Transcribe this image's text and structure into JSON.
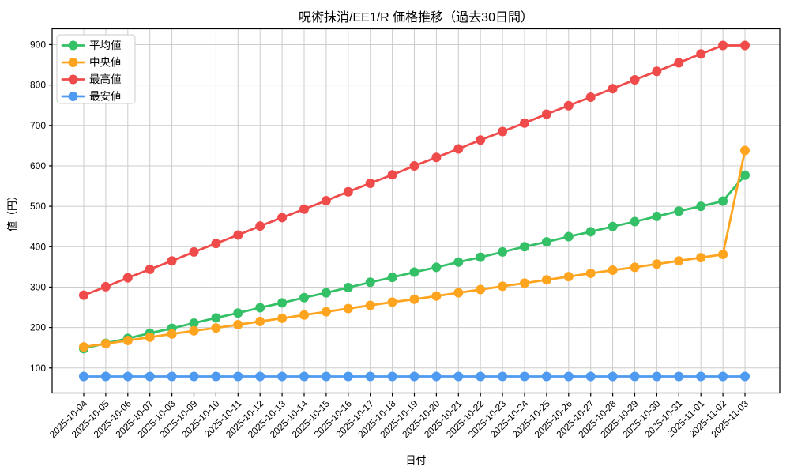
{
  "figure": {
    "background": "#ffffff",
    "grid_color": "#cccccc",
    "axis_color": "#000000"
  },
  "chart_data": {
    "type": "line",
    "title": "呪術抹消/EE1/R 価格推移（過去30日間）",
    "xlabel": "日付",
    "ylabel": "値（円）",
    "x": [
      "2025-10-04",
      "2025-10-05",
      "2025-10-06",
      "2025-10-07",
      "2025-10-08",
      "2025-10-09",
      "2025-10-10",
      "2025-10-11",
      "2025-10-12",
      "2025-10-13",
      "2025-10-14",
      "2025-10-15",
      "2025-10-16",
      "2025-10-17",
      "2025-10-18",
      "2025-10-19",
      "2025-10-20",
      "2025-10-21",
      "2025-10-22",
      "2025-10-23",
      "2025-10-24",
      "2025-10-25",
      "2025-10-26",
      "2025-10-27",
      "2025-10-28",
      "2025-10-29",
      "2025-10-30",
      "2025-10-31",
      "2025-11-01",
      "2025-11-02",
      "2025-11-03"
    ],
    "y_ticks": [
      100,
      200,
      300,
      400,
      500,
      600,
      700,
      800,
      900
    ],
    "ylim": [
      38,
      939
    ],
    "grid": true,
    "legend_position": "upper-left",
    "series": [
      {
        "key": "avg",
        "name": "平均値",
        "color": "#33C066",
        "values": [
          148,
          161,
          173,
          186,
          198,
          211,
          224,
          236,
          249,
          261,
          274,
          286,
          299,
          312,
          324,
          337,
          349,
          362,
          374,
          387,
          400,
          412,
          425,
          437,
          450,
          462,
          475,
          488,
          500,
          513,
          577
        ]
      },
      {
        "key": "median",
        "name": "中央値",
        "color": "#FFA41F",
        "values": [
          152,
          160,
          168,
          176,
          184,
          192,
          199,
          207,
          215,
          223,
          231,
          239,
          247,
          255,
          263,
          270,
          278,
          286,
          294,
          302,
          310,
          318,
          326,
          334,
          342,
          349,
          357,
          365,
          373,
          381,
          638
        ]
      },
      {
        "key": "max",
        "name": "最高値",
        "color": "#F04B4B",
        "values": [
          280,
          301,
          323,
          344,
          365,
          387,
          408,
          429,
          451,
          472,
          493,
          514,
          536,
          557,
          578,
          600,
          621,
          642,
          664,
          685,
          706,
          728,
          749,
          770,
          791,
          813,
          834,
          855,
          877,
          898,
          898
        ]
      },
      {
        "key": "min",
        "name": "最安値",
        "color": "#4D9AF0",
        "values": [
          79,
          79,
          79,
          79,
          79,
          79,
          79,
          79,
          79,
          79,
          79,
          79,
          79,
          79,
          79,
          79,
          79,
          79,
          79,
          79,
          79,
          79,
          79,
          79,
          79,
          79,
          79,
          79,
          79,
          79,
          79
        ]
      }
    ]
  }
}
